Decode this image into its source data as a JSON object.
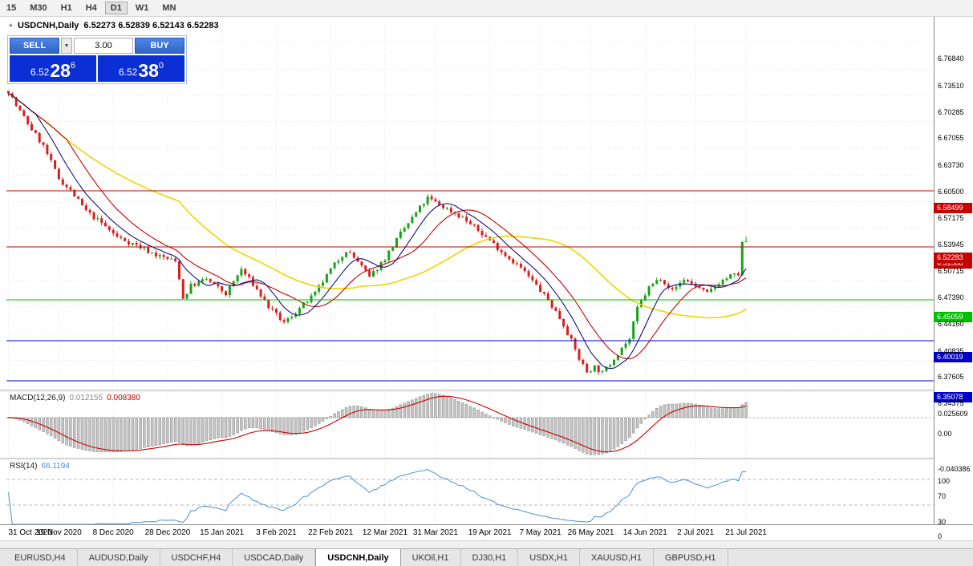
{
  "toolbar": {
    "timeframes": [
      {
        "label": "15",
        "active": false
      },
      {
        "label": "M30",
        "active": false
      },
      {
        "label": "H1",
        "active": false
      },
      {
        "label": "H4",
        "active": false
      },
      {
        "label": "D1",
        "active": true
      },
      {
        "label": "W1",
        "active": false
      },
      {
        "label": "MN",
        "active": false
      }
    ]
  },
  "chart_header": {
    "collapse_icon": "▲",
    "symbol": "USDCNH,Daily",
    "ohlc": "6.52273 6.52839 6.52143 6.52283"
  },
  "trade_panel": {
    "sell_label": "SELL",
    "buy_label": "BUY",
    "lot_size": "3.00",
    "dropdown_icon": "▼",
    "sell_price": {
      "prefix": "6.52",
      "pips": "28",
      "sup": "6"
    },
    "buy_price": {
      "prefix": "6.52",
      "pips": "38",
      "sup": "0"
    }
  },
  "price_axis": {
    "ticks": [
      {
        "price": 6.7684,
        "label": "6.76840"
      },
      {
        "price": 6.7351,
        "label": "6.73510"
      },
      {
        "price": 6.70285,
        "label": "6.70285"
      },
      {
        "price": 6.67055,
        "label": "6.67055"
      },
      {
        "price": 6.6373,
        "label": "6.63730"
      },
      {
        "price": 6.605,
        "label": "6.60500"
      },
      {
        "price": 6.57175,
        "label": "6.57175"
      },
      {
        "price": 6.53945,
        "label": "6.53945"
      },
      {
        "price": 6.50715,
        "label": "6.50715"
      },
      {
        "price": 6.4739,
        "label": "6.47390"
      },
      {
        "price": 6.4416,
        "label": "6.44160"
      },
      {
        "price": 6.40835,
        "label": "6.40835"
      },
      {
        "price": 6.37605,
        "label": "6.37605"
      },
      {
        "price": 6.34375,
        "label": "6.34375"
      }
    ]
  },
  "hlines": [
    {
      "price": 6.58499,
      "label": "6.58499",
      "color": "#C80000"
    },
    {
      "price": 6.51588,
      "label": "6.51588",
      "color": "#C80000"
    },
    {
      "price": 6.45059,
      "label": "6.45059",
      "color": "#00BE00"
    },
    {
      "price": 6.40019,
      "label": "6.40019",
      "color": "#0000C8"
    },
    {
      "price": 6.35078,
      "label": "6.35078",
      "color": "#0000C8"
    }
  ],
  "current_price_tag": {
    "price": 6.52283,
    "label": "6.52283",
    "color": "#C80000"
  },
  "date_axis": [
    {
      "index": 0,
      "label": "31 Oct 2020"
    },
    {
      "index": 13,
      "label": "19 Nov 2020"
    },
    {
      "index": 27,
      "label": "8 Dec 2020"
    },
    {
      "index": 41,
      "label": "28 Dec 2020"
    },
    {
      "index": 55,
      "label": "15 Jan 2021"
    },
    {
      "index": 69,
      "label": "3 Feb 2021"
    },
    {
      "index": 83,
      "label": "22 Feb 2021"
    },
    {
      "index": 97,
      "label": "12 Mar 2021"
    },
    {
      "index": 110,
      "label": "31 Mar 2021"
    },
    {
      "index": 124,
      "label": "19 Apr 2021"
    },
    {
      "index": 137,
      "label": "7 May 2021"
    },
    {
      "index": 150,
      "label": "26 May 2021"
    },
    {
      "index": 164,
      "label": "14 Jun 2021"
    },
    {
      "index": 177,
      "label": "2 Jul 2021"
    },
    {
      "index": 190,
      "label": "21 Jul 2021"
    }
  ],
  "macd_panel": {
    "name": "MACD(12,26,9)",
    "value_main": "0.012155",
    "value_signal": "0.008380",
    "axis_max": {
      "value": 0.025609,
      "label": "0.025609"
    },
    "axis_zero": {
      "value": 0,
      "label": "0.00"
    },
    "axis_min": {
      "value": -0.040386,
      "label": "-0.040386"
    }
  },
  "rsi_panel": {
    "name": "RSI(14)",
    "value": "66.1194",
    "levels": [
      {
        "value": 100,
        "label": "100"
      },
      {
        "value": 70,
        "label": "70"
      },
      {
        "value": 30,
        "label": "30"
      },
      {
        "value": 0,
        "label": "0"
      }
    ]
  },
  "tabbar": {
    "tabs": [
      {
        "label": "EURUSD,H4",
        "active": false
      },
      {
        "label": "AUDUSD,Daily",
        "active": false
      },
      {
        "label": "USDCHF,H4",
        "active": false
      },
      {
        "label": "USDCAD,Daily",
        "active": false
      },
      {
        "label": "USDCNH,Daily",
        "active": true
      },
      {
        "label": "UKOil,H1",
        "active": false
      },
      {
        "label": "DJ30,H1",
        "active": false
      },
      {
        "label": "USDX,H1",
        "active": false
      },
      {
        "label": "XAUUSD,H1",
        "active": false
      },
      {
        "label": "GBPUSD,H1",
        "active": false
      }
    ]
  },
  "chart_data": {
    "type": "candlestick",
    "symbol": "USDCNH",
    "timeframe": "Daily",
    "visible_range": {
      "top": 6.7965,
      "bottom": 6.3399
    },
    "num_candles": 191,
    "last_candle": {
      "open": 6.52273,
      "high": 6.52839,
      "low": 6.52143,
      "close": 6.52283
    },
    "close_anchors": [
      [
        0,
        6.708
      ],
      [
        2,
        6.69
      ],
      [
        5,
        6.668
      ],
      [
        9,
        6.64
      ],
      [
        13,
        6.6
      ],
      [
        16,
        6.585
      ],
      [
        20,
        6.56
      ],
      [
        24,
        6.545
      ],
      [
        28,
        6.528
      ],
      [
        33,
        6.518
      ],
      [
        38,
        6.506
      ],
      [
        43,
        6.498
      ],
      [
        44,
        6.478
      ],
      [
        45,
        6.452
      ],
      [
        47,
        6.468
      ],
      [
        51,
        6.476
      ],
      [
        56,
        6.458
      ],
      [
        60,
        6.488
      ],
      [
        63,
        6.47
      ],
      [
        67,
        6.442
      ],
      [
        71,
        6.422
      ],
      [
        75,
        6.44
      ],
      [
        79,
        6.458
      ],
      [
        83,
        6.488
      ],
      [
        87,
        6.512
      ],
      [
        90,
        6.498
      ],
      [
        93,
        6.478
      ],
      [
        97,
        6.502
      ],
      [
        101,
        6.532
      ],
      [
        105,
        6.558
      ],
      [
        108,
        6.576
      ],
      [
        111,
        6.568
      ],
      [
        114,
        6.56
      ],
      [
        117,
        6.552
      ],
      [
        120,
        6.54
      ],
      [
        124,
        6.524
      ],
      [
        128,
        6.506
      ],
      [
        132,
        6.49
      ],
      [
        136,
        6.468
      ],
      [
        139,
        6.45
      ],
      [
        141,
        6.436
      ],
      [
        143,
        6.42
      ],
      [
        145,
        6.4
      ],
      [
        147,
        6.378
      ],
      [
        149,
        6.362
      ],
      [
        151,
        6.368
      ],
      [
        153,
        6.36
      ],
      [
        155,
        6.372
      ],
      [
        158,
        6.392
      ],
      [
        160,
        6.402
      ],
      [
        162,
        6.44
      ],
      [
        165,
        6.466
      ],
      [
        168,
        6.478
      ],
      [
        171,
        6.462
      ],
      [
        174,
        6.476
      ],
      [
        177,
        6.468
      ],
      [
        180,
        6.458
      ],
      [
        183,
        6.472
      ],
      [
        186,
        6.48
      ],
      [
        188,
        6.482
      ],
      [
        189,
        6.52
      ],
      [
        190,
        6.523
      ]
    ],
    "noise": 0.0062,
    "wick": 0.0035,
    "seed": 7,
    "ma_periods": {
      "fast": 8,
      "mid": 16,
      "slow": 45
    },
    "colors": {
      "up": "#18A318",
      "down": "#D62020",
      "ma_fast": "#101080",
      "ma_mid": "#CC0000",
      "ma_slow": "#EFD400",
      "macd_hist": "#C4C4C4",
      "macd_hist_border": "#8C8C8C",
      "macd_signal": "#CC0000",
      "rsi_line": "#4A90D9",
      "grid": "#E7E7E7",
      "level": "#B8B8B8"
    }
  }
}
